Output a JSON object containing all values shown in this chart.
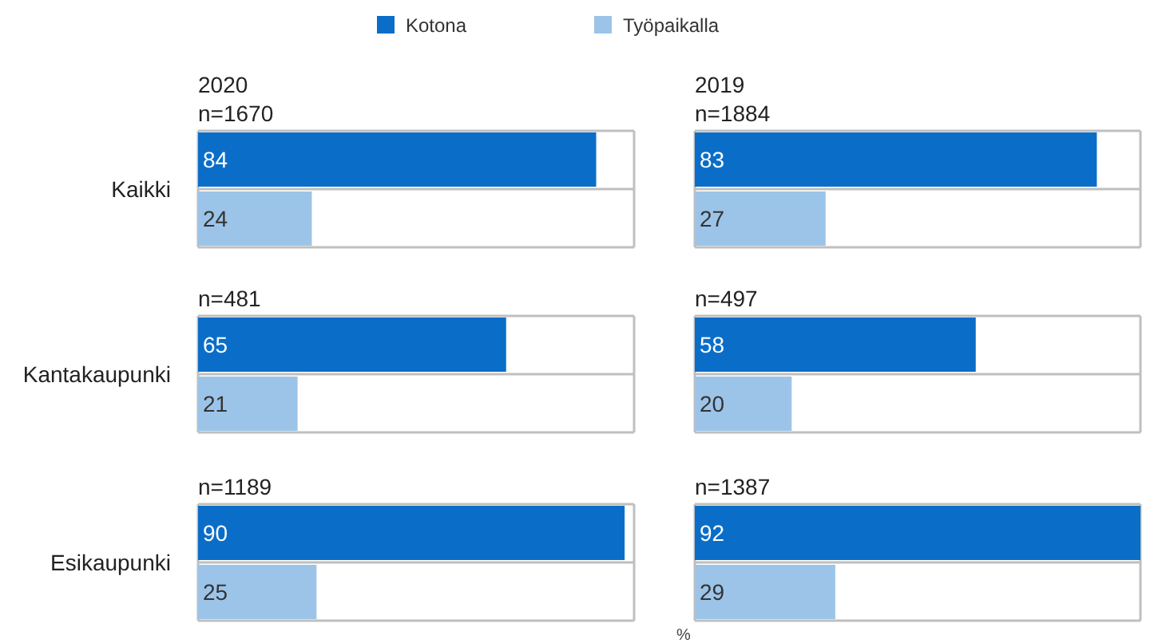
{
  "chart_data": [
    {
      "type": "bar",
      "orientation": "horizontal",
      "title": "2020",
      "categories": [
        "Kaikki",
        "Kantakaupunki",
        "Esikaupunki"
      ],
      "xlim": [
        0,
        92
      ],
      "tick_labels": "y",
      "grid": "y",
      "data_labels": true,
      "legend": "top",
      "xlabel": "%",
      "annotations": [
        "n=1670",
        "n=481",
        "n=1189"
      ],
      "series": [
        {
          "name": "Kotona",
          "color": "#0a6ec8",
          "values": [
            84,
            65,
            90
          ]
        },
        {
          "name": "Työpaikalla",
          "color": "#9cc4e8",
          "values": [
            24,
            21,
            25
          ]
        }
      ]
    },
    {
      "type": "bar",
      "orientation": "horizontal",
      "title": "2019",
      "categories": [
        null,
        null,
        null
      ],
      "xlim": [
        0,
        92
      ],
      "grid": "y",
      "data_labels": true,
      "annotations": [
        "n=1884",
        "n=497",
        "n=1387"
      ],
      "series": [
        {
          "color": "#0a6ec8",
          "values": [
            83,
            58,
            92
          ]
        },
        {
          "color": "#9cc4e8",
          "values": [
            27,
            20,
            29
          ]
        }
      ]
    }
  ]
}
